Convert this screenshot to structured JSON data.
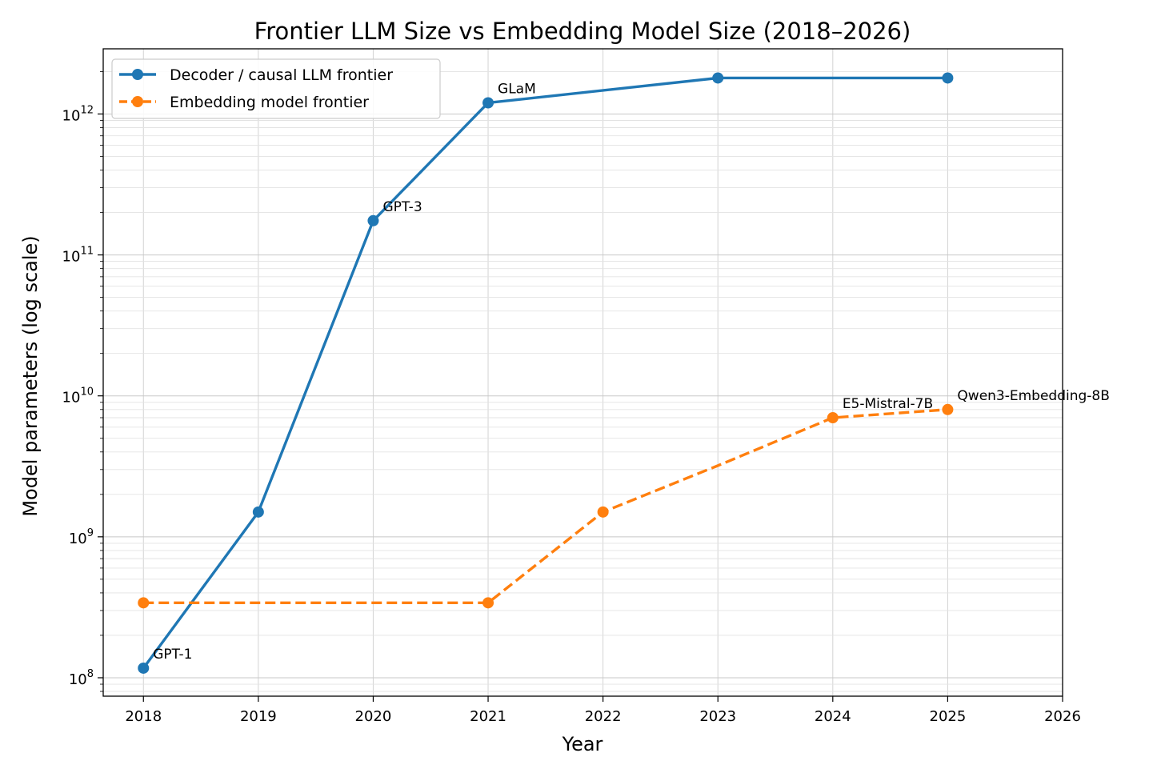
{
  "chart_data": {
    "type": "line",
    "title": "Frontier LLM Size vs Embedding Model Size (2018–2026)",
    "xlabel": "Year",
    "ylabel": "Model parameters (log scale)",
    "xlim": [
      2017.65,
      2026
    ],
    "ylim": [
      74000000.0,
      2900000000000.0
    ],
    "yscale": "log",
    "grid": true,
    "legend_position": "top-left",
    "x_ticks": [
      2018,
      2019,
      2020,
      2021,
      2022,
      2023,
      2024,
      2025,
      2026
    ],
    "y_ticks": [
      {
        "value": 100000000.0,
        "base": "10",
        "exp": "8"
      },
      {
        "value": 1000000000.0,
        "base": "10",
        "exp": "9"
      },
      {
        "value": 10000000000.0,
        "base": "10",
        "exp": "10"
      },
      {
        "value": 100000000000.0,
        "base": "10",
        "exp": "11"
      },
      {
        "value": 1000000000000.0,
        "base": "10",
        "exp": "12"
      }
    ],
    "series": [
      {
        "name": "Decoder / causal LLM frontier",
        "color": "#1f77b4",
        "style": "solid",
        "x": [
          2018,
          2019,
          2020,
          2021,
          2023,
          2025
        ],
        "y": [
          117000000.0,
          1500000000.0,
          175000000000.0,
          1200000000000.0,
          1800000000000.0,
          1800000000000.0
        ],
        "annotations": [
          {
            "x": 2018,
            "y": 117000000.0,
            "text": "GPT-1"
          },
          {
            "x": 2020,
            "y": 175000000000.0,
            "text": "GPT-3"
          },
          {
            "x": 2021,
            "y": 1200000000000.0,
            "text": "GLaM"
          }
        ]
      },
      {
        "name": "Embedding model frontier",
        "color": "#ff7f0e",
        "style": "dashed",
        "x": [
          2018,
          2021,
          2022,
          2023,
          2024,
          2025
        ],
        "y": [
          340000000.0,
          340000000.0,
          1500000000.0,
          3200000000.0,
          7000000000.0,
          8000000000.0
        ],
        "markers": [
          true,
          true,
          true,
          false,
          true,
          true
        ],
        "annotations": [
          {
            "x": 2024,
            "y": 7000000000.0,
            "text": "E5-Mistral-7B"
          },
          {
            "x": 2025,
            "y": 8000000000.0,
            "text": "Qwen3-Embedding-8B"
          }
        ]
      }
    ]
  }
}
